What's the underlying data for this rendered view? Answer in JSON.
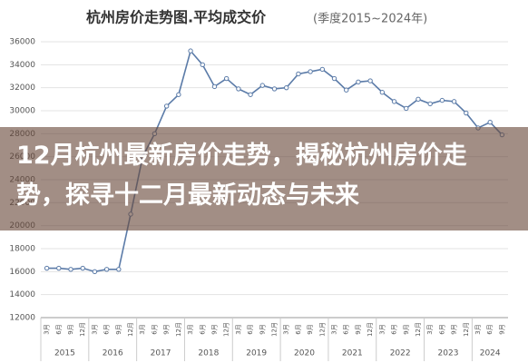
{
  "chart_data": {
    "type": "line",
    "title": "杭州房价走势图.平均成交价",
    "subtitle": "(季度2015~2024年)",
    "categories": [
      "3月",
      "6月",
      "9月",
      "12月",
      "3月",
      "6月",
      "9月",
      "12月",
      "3月",
      "6月",
      "9月",
      "12月",
      "3月",
      "6月",
      "9月",
      "12月",
      "3月",
      "6月",
      "9月",
      "12月",
      "3月",
      "6月",
      "9月",
      "12月",
      "3月",
      "6月",
      "9月",
      "12月",
      "3月",
      "6月",
      "9月",
      "12月",
      "3月",
      "6月",
      "9月",
      "12月",
      "3月",
      "6月",
      "9月"
    ],
    "groups": [
      "2015",
      "2016",
      "2017",
      "2018",
      "2019",
      "2020",
      "2021",
      "2022",
      "2023",
      "2024"
    ],
    "series": [
      {
        "name": "平均成交价",
        "color": "#5b7ba8",
        "values": [
          16300,
          16300,
          16200,
          16300,
          16000,
          16200,
          16200,
          21000,
          26000,
          28000,
          30400,
          31400,
          35200,
          34000,
          32100,
          32800,
          31900,
          31400,
          32200,
          31900,
          32000,
          33200,
          33400,
          33600,
          32800,
          31800,
          32500,
          32600,
          31600,
          30800,
          30200,
          31000,
          30600,
          30900,
          30800,
          29800,
          28500,
          29000,
          27900
        ]
      }
    ],
    "ylim": [
      12000,
      36000
    ],
    "yticks": [
      12000,
      14000,
      16000,
      18000,
      20000,
      22000,
      24000,
      26000,
      28000,
      30000,
      32000,
      34000,
      36000
    ],
    "grid": true
  },
  "overlay": {
    "headline": "12月杭州最新房价走势，揭秘杭州房价走势，探寻十二月最新动态与未来"
  }
}
